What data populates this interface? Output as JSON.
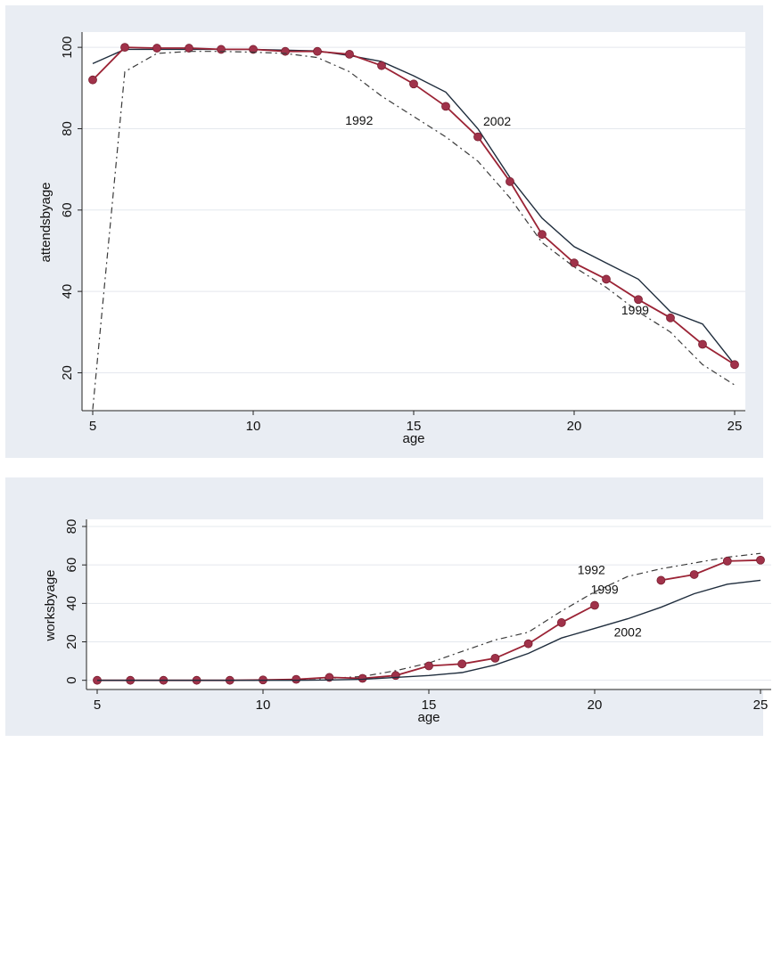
{
  "chart_data": [
    {
      "type": "line",
      "ylabel": "attendsbyage",
      "xlabel": "age",
      "xlim": [
        5,
        25
      ],
      "ylim": [
        12,
        102
      ],
      "xticks": [
        "5",
        "10",
        "15",
        "20",
        "25"
      ],
      "yticks": [
        "20",
        "40",
        "60",
        "80",
        "100"
      ],
      "grid": true,
      "x": [
        5,
        6,
        7,
        8,
        9,
        10,
        11,
        12,
        13,
        14,
        15,
        16,
        17,
        18,
        19,
        20,
        21,
        22,
        23,
        24,
        25
      ],
      "series": [
        {
          "name": "2002",
          "style": "solid-dark",
          "values": [
            96,
            99.5,
            99.5,
            99.5,
            99.5,
            99.5,
            99.3,
            99.1,
            98,
            96.5,
            93,
            89,
            80,
            68,
            58,
            51,
            47,
            43,
            35,
            32,
            22
          ]
        },
        {
          "name": "1999",
          "style": "marker-red",
          "values": [
            92,
            100,
            99.8,
            99.8,
            99.5,
            99.5,
            99,
            99,
            98.3,
            95.5,
            91,
            85.5,
            78,
            67,
            54,
            47,
            43,
            38,
            33.5,
            27,
            22
          ]
        },
        {
          "name": "1992",
          "style": "dashed-dark",
          "values": [
            11,
            94,
            98.5,
            99,
            99,
            98.8,
            98.5,
            97.5,
            94,
            88,
            83,
            78,
            72,
            63,
            52,
            46,
            41,
            35,
            30,
            22,
            17
          ]
        }
      ],
      "annotations": [
        {
          "text": "1992",
          "x": 13.3,
          "y": 81
        },
        {
          "text": "2002",
          "x": 17.6,
          "y": 80.8
        },
        {
          "text": "1999",
          "x": 21.9,
          "y": 34.3
        }
      ]
    },
    {
      "type": "line",
      "ylabel": "worksbyage",
      "xlabel": "age",
      "xlim": [
        5,
        25
      ],
      "ylim": [
        -2,
        80
      ],
      "xticks": [
        "5",
        "10",
        "15",
        "20",
        "25"
      ],
      "yticks": [
        "0",
        "20",
        "40",
        "60",
        "80"
      ],
      "grid": true,
      "x": [
        5,
        6,
        7,
        8,
        9,
        10,
        11,
        12,
        13,
        14,
        15,
        16,
        17,
        18,
        19,
        20,
        21,
        22,
        23,
        24,
        25
      ],
      "series": [
        {
          "name": "1992",
          "style": "dashed-dark",
          "values": [
            0,
            0,
            0,
            0,
            0,
            0,
            0.5,
            1,
            2,
            5,
            9,
            15,
            21,
            25,
            36,
            46,
            54,
            58,
            61,
            64,
            66
          ]
        },
        {
          "name": "1999",
          "style": "marker-red",
          "values": [
            0,
            0,
            0,
            0,
            0,
            0.2,
            0.5,
            1.5,
            1,
            2.5,
            7.5,
            8.5,
            11.5,
            19,
            30,
            39,
            null,
            52,
            55,
            62,
            62.5
          ]
        },
        {
          "name": "2002",
          "style": "solid-dark",
          "values": [
            0,
            0,
            0,
            0,
            0,
            0,
            0,
            0.2,
            0.5,
            1.5,
            2.5,
            4,
            8,
            14,
            22,
            27,
            32,
            38,
            45,
            50,
            52
          ]
        }
      ],
      "annotations": [
        {
          "text": "1992",
          "x": 19.9,
          "y": 55.2
        },
        {
          "text": "1999",
          "x": 20.3,
          "y": 45.1
        },
        {
          "text": "2002",
          "x": 21.0,
          "y": 22.8
        }
      ]
    }
  ]
}
